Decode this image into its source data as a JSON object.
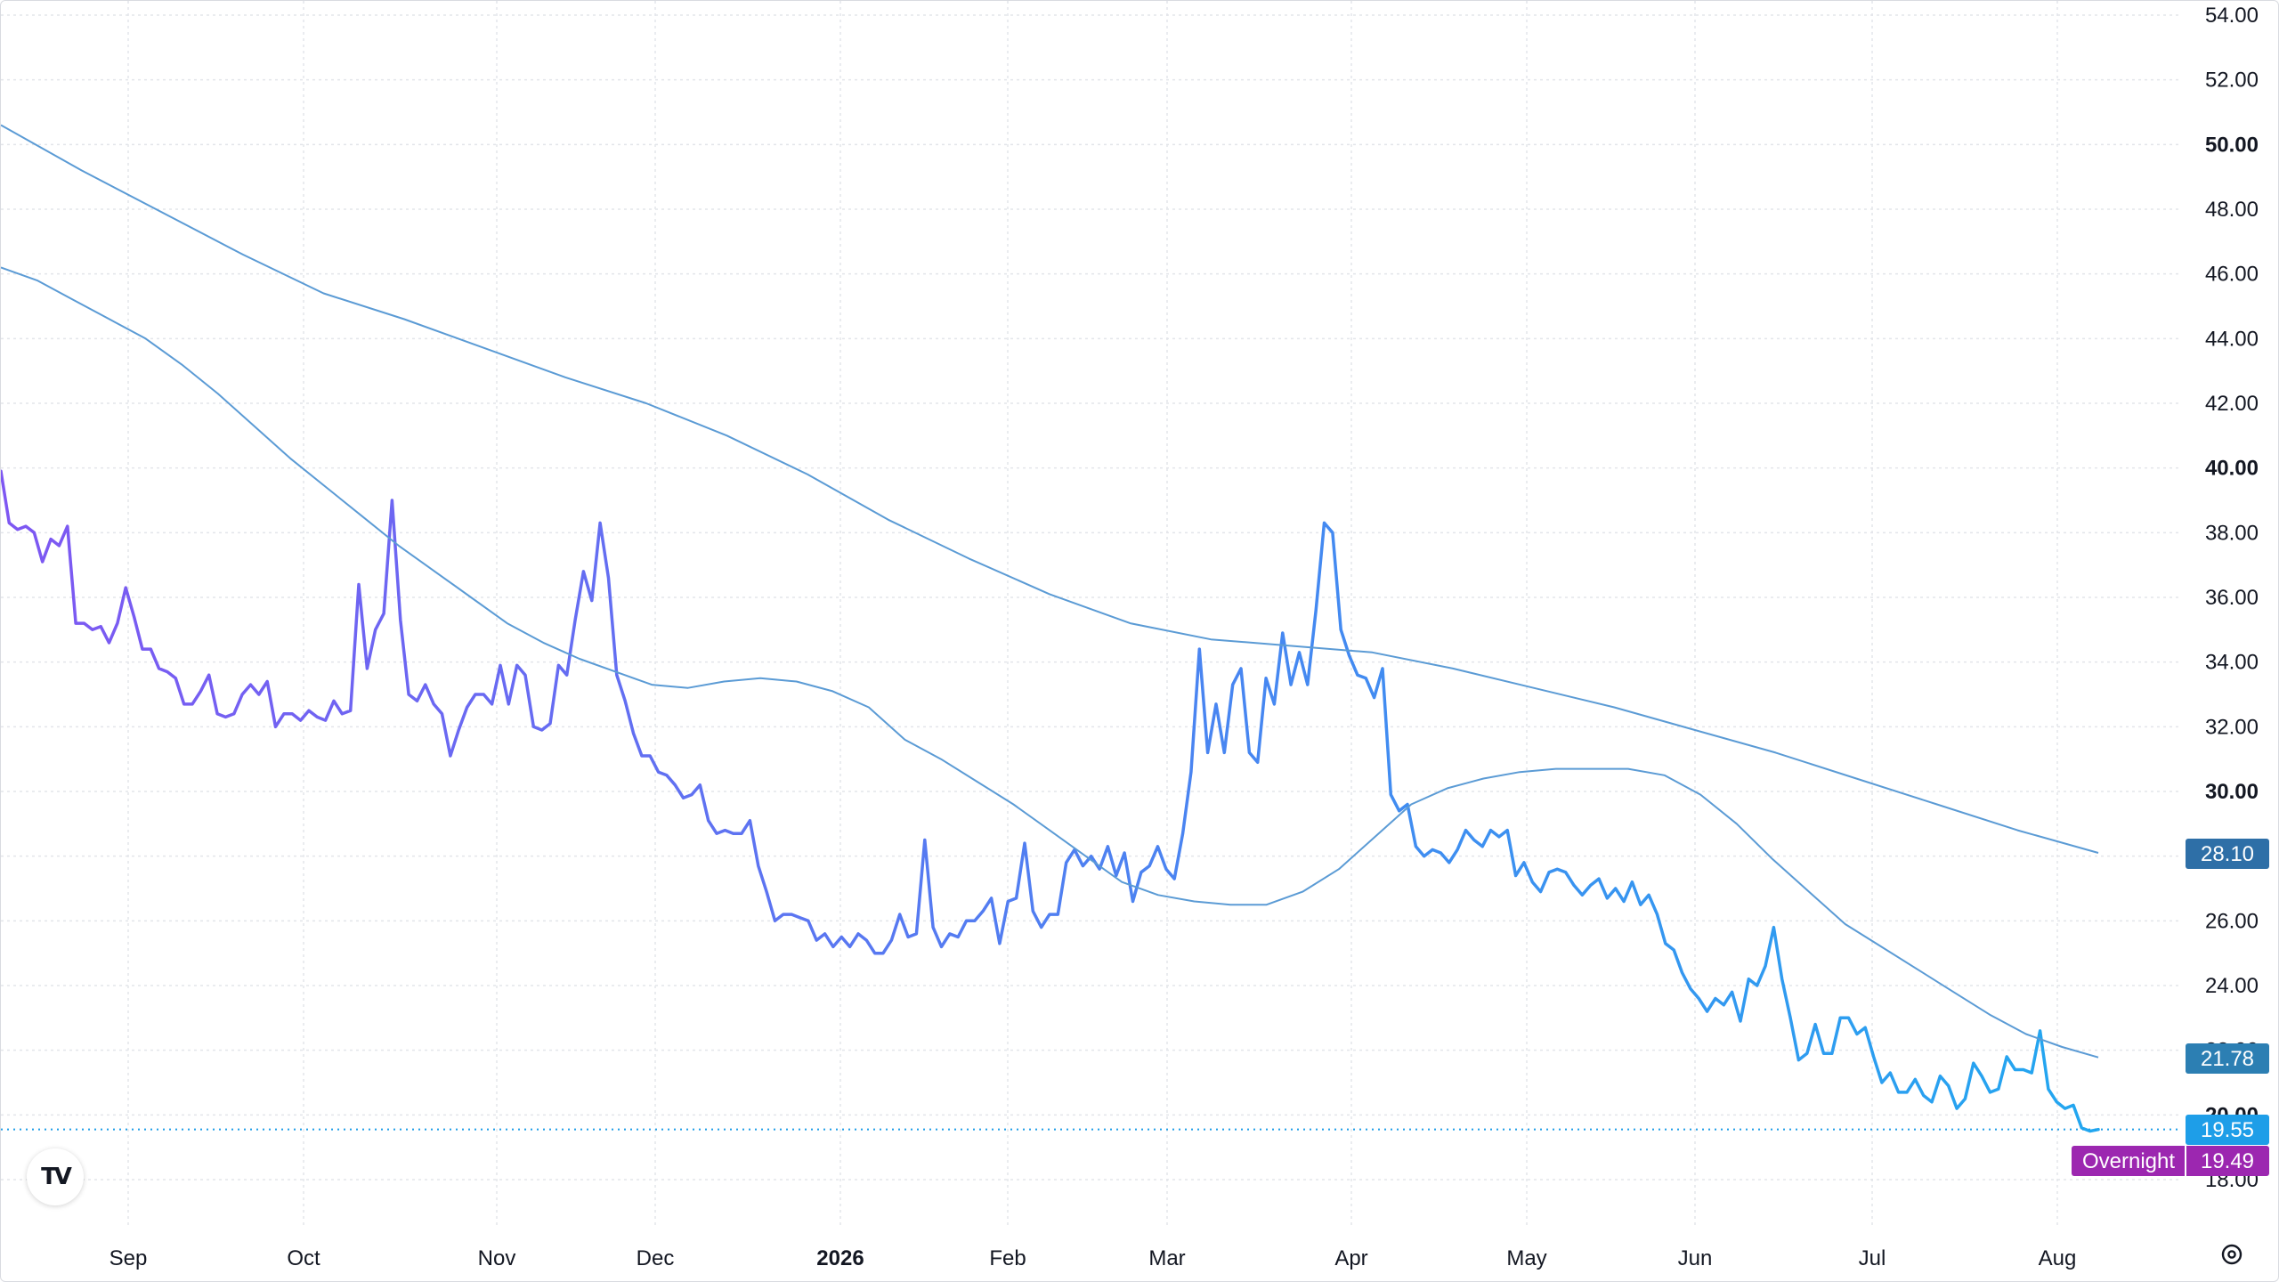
{
  "chart_data": {
    "type": "line",
    "ylim": [
      18,
      54
    ],
    "y_ticks": [
      "54.00",
      "52.00",
      "50.00",
      "48.00",
      "46.00",
      "44.00",
      "42.00",
      "40.00",
      "38.00",
      "36.00",
      "34.00",
      "32.00",
      "30.00",
      "28.00",
      "26.00",
      "24.00",
      "22.00",
      "20.00",
      "18.00"
    ],
    "y_ticks_bold": [
      "50.00",
      "40.00",
      "30.00",
      "20.00"
    ],
    "x_ticks": [
      "Sep",
      "Oct",
      "Nov",
      "Dec",
      "2026",
      "Feb",
      "Mar",
      "Apr",
      "May",
      "Jun",
      "Jul",
      "Aug"
    ],
    "x_ticks_bold": [
      "2026"
    ],
    "grid": true,
    "series": [
      {
        "role": "price",
        "values": [
          39.9,
          38.3,
          38.1,
          38.2,
          38.0,
          37.1,
          37.8,
          37.6,
          38.2,
          35.2,
          35.2,
          35.0,
          35.1,
          34.6,
          35.2,
          36.3,
          35.4,
          34.4,
          34.4,
          33.8,
          33.7,
          33.5,
          32.7,
          32.7,
          33.1,
          33.6,
          32.4,
          32.3,
          32.4,
          33.0,
          33.3,
          33.0,
          33.4,
          32.0,
          32.4,
          32.4,
          32.2,
          32.5,
          32.3,
          32.2,
          32.8,
          32.4,
          32.5,
          36.4,
          33.8,
          35.0,
          35.5,
          39.0,
          35.3,
          33.0,
          32.8,
          33.3,
          32.7,
          32.4,
          31.1,
          31.9,
          32.6,
          33.0,
          33.0,
          32.7,
          33.9,
          32.7,
          33.9,
          33.6,
          32.0,
          31.9,
          32.1,
          33.9,
          33.6,
          35.3,
          36.8,
          35.9,
          38.3,
          36.6,
          33.6,
          32.8,
          31.8,
          31.1,
          31.1,
          30.6,
          30.5,
          30.2,
          29.8,
          29.9,
          30.2,
          29.1,
          28.7,
          28.8,
          28.7,
          28.7,
          29.1,
          27.7,
          26.9,
          26.0,
          26.2,
          26.2,
          26.1,
          26.0,
          25.4,
          25.6,
          25.2,
          25.5,
          25.2,
          25.6,
          25.4,
          25.0,
          25.0,
          25.4,
          26.2,
          25.5,
          25.6,
          28.5,
          25.8,
          25.2,
          25.6,
          25.5,
          26.0,
          26.0,
          26.3,
          26.7,
          25.3,
          26.6,
          26.7,
          28.4,
          26.3,
          25.8,
          26.2,
          26.2,
          27.8,
          28.2,
          27.7,
          28.0,
          27.6,
          28.3,
          27.4,
          28.1,
          26.6,
          27.5,
          27.7,
          28.3,
          27.6,
          27.3,
          28.7,
          30.6,
          34.4,
          31.2,
          32.7,
          31.2,
          33.3,
          33.8,
          31.2,
          30.9,
          33.5,
          32.7,
          34.9,
          33.3,
          34.3,
          33.3,
          35.6,
          38.3,
          38.0,
          35.0,
          34.2,
          33.6,
          33.5,
          32.9,
          33.8,
          29.9,
          29.4,
          29.6,
          28.3,
          28.0,
          28.2,
          28.1,
          27.8,
          28.2,
          28.8,
          28.5,
          28.3,
          28.8,
          28.6,
          28.8,
          27.4,
          27.8,
          27.2,
          26.9,
          27.5,
          27.6,
          27.5,
          27.1,
          26.8,
          27.1,
          27.3,
          26.7,
          27.0,
          26.6,
          27.2,
          26.5,
          26.8,
          26.2,
          25.3,
          25.1,
          24.4,
          23.9,
          23.6,
          23.2,
          23.6,
          23.4,
          23.8,
          22.9,
          24.2,
          24.0,
          24.6,
          25.8,
          24.2,
          23.0,
          21.7,
          21.9,
          22.8,
          21.9,
          21.9,
          23.0,
          23.0,
          22.5,
          22.7,
          21.8,
          21.0,
          21.3,
          20.7,
          20.7,
          21.1,
          20.6,
          20.4,
          21.2,
          20.9,
          20.2,
          20.5,
          21.6,
          21.2,
          20.7,
          20.8,
          21.8,
          21.4,
          21.4,
          21.3,
          22.6,
          20.8,
          20.4,
          20.2,
          20.3,
          19.6,
          19.5,
          19.55
        ]
      },
      {
        "role": "moving-average-short",
        "values": [
          46.2,
          45.8,
          45.2,
          44.6,
          44.0,
          43.2,
          42.3,
          41.3,
          40.3,
          39.4,
          38.5,
          37.6,
          36.8,
          36.0,
          35.2,
          34.6,
          34.1,
          33.7,
          33.3,
          33.2,
          33.4,
          33.5,
          33.4,
          33.1,
          32.6,
          31.6,
          31.0,
          30.3,
          29.6,
          28.8,
          28.0,
          27.2,
          26.8,
          26.6,
          26.5,
          26.5,
          26.9,
          27.6,
          28.6,
          29.6,
          30.1,
          30.4,
          30.6,
          30.7,
          30.7,
          30.7,
          30.5,
          29.9,
          29.0,
          27.9,
          26.9,
          25.9,
          25.2,
          24.5,
          23.8,
          23.1,
          22.5,
          22.1,
          21.78
        ]
      },
      {
        "role": "moving-average-long",
        "values": [
          50.6,
          49.2,
          47.9,
          46.6,
          45.4,
          44.6,
          43.7,
          42.8,
          42.0,
          41.0,
          39.8,
          38.4,
          37.2,
          36.1,
          35.2,
          34.7,
          34.5,
          34.3,
          33.8,
          33.2,
          32.6,
          31.9,
          31.2,
          30.4,
          29.6,
          28.8,
          28.1
        ]
      }
    ],
    "last_price_label": "19.55",
    "overnight_label": "Overnight",
    "overnight_value": "19.49",
    "ma_short_label": "21.78",
    "ma_long_label": "28.10",
    "colors": {
      "price_start": "#7e57f2",
      "price_end": "#22a7f0",
      "ma_line": "#5b9bd5",
      "ma_long_badge": "#2e6fa7",
      "ma_short_badge": "#2c7fb3",
      "last_price_badge": "#1e9ee8",
      "overnight_badge": "#9c27b0",
      "grid": "#e3e5ea"
    }
  },
  "branding": {
    "logo_text": "TV",
    "logo_icon": "tradingview-logo-icon"
  },
  "toolbar": {
    "settings_icon": "settings-icon"
  }
}
